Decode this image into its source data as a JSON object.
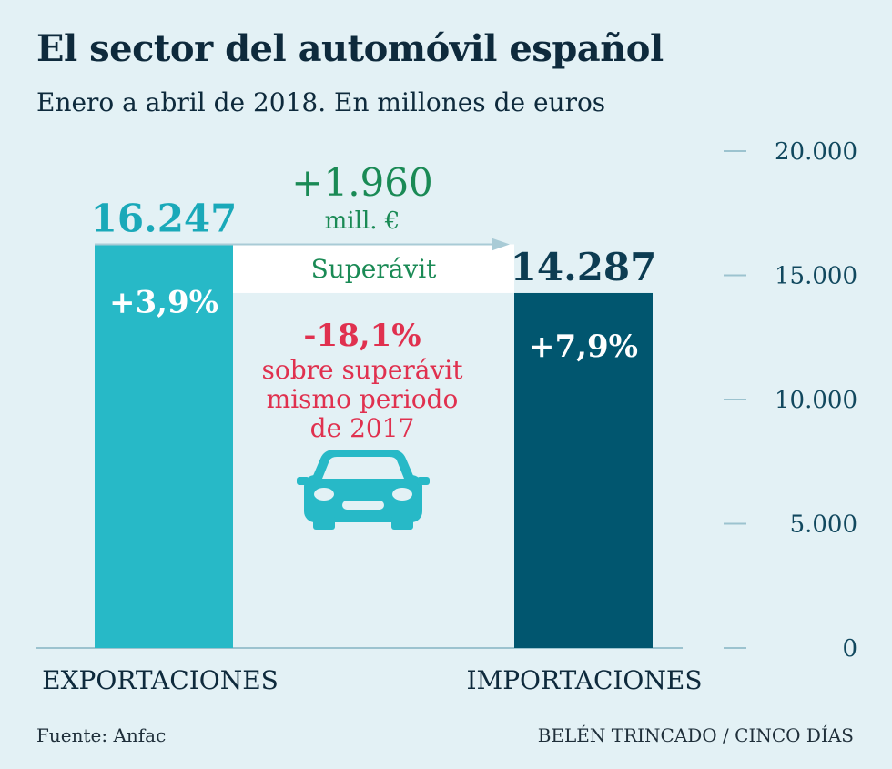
{
  "header": {
    "title": "El sector del automóvil español",
    "subtitle": "Enero a abril de 2018. En millones de euros"
  },
  "chart_data": {
    "type": "bar",
    "categories": [
      "EXPORTACIONES",
      "IMPORTACIONES"
    ],
    "values": [
      16247,
      14287
    ],
    "value_labels": [
      "16.247",
      "14.287"
    ],
    "change_labels": [
      "+3,9%",
      "+7,9%"
    ],
    "ylim": [
      0,
      20000
    ],
    "yticks": [
      0,
      5000,
      10000,
      15000,
      20000
    ],
    "ytick_labels": [
      "0",
      "5.000",
      "10.000",
      "15.000",
      "20.000"
    ],
    "surplus": {
      "value_label": "+1.960",
      "unit_label": "mill. €",
      "band_label": "Superávit",
      "change_label": "-18,1%",
      "note_lines": [
        "sobre superávit",
        "mismo periodo",
        "de 2017"
      ]
    },
    "colors": {
      "exportaciones": "#27b9c7",
      "importaciones": "#01566f",
      "surplus_text": "#1a8a55",
      "change_text": "#e0314f",
      "export_value_text": "#1aa9b9",
      "import_value_text": "#0d3c52",
      "axis": "#9cc3cf",
      "tick_text": "#11485e",
      "car_icon": "#27b9c7"
    }
  },
  "footer": {
    "source": "Fuente: Anfac",
    "credit": "BELÉN TRINCADO / CINCO DÍAS"
  }
}
